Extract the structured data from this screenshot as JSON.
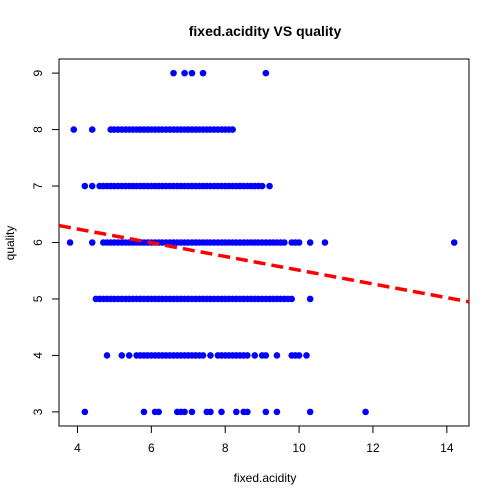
{
  "chart_data": {
    "type": "scatter",
    "title": "fixed.acidity VS quality",
    "xlabel": "fixed.acidity",
    "ylabel": "quality",
    "xlim": [
      3.5,
      14.6
    ],
    "ylim": [
      2.75,
      9.25
    ],
    "x_ticks": [
      4,
      6,
      8,
      10,
      12,
      14
    ],
    "y_ticks": [
      3,
      4,
      5,
      6,
      7,
      8,
      9
    ],
    "grid": false,
    "legend": "none",
    "point_color": "#0000ff",
    "line_color": "#ff0000",
    "regression_line": {
      "x": [
        3.5,
        14.6
      ],
      "y": [
        6.3,
        4.95
      ],
      "style": "dashed"
    },
    "points_by_quality": [
      {
        "quality": 9,
        "x": [
          6.6,
          6.9,
          7.1,
          7.4,
          9.1
        ]
      },
      {
        "quality": 8,
        "x": [
          3.9,
          4.4,
          4.9,
          5.0,
          5.1,
          5.2,
          5.3,
          5.4,
          5.5,
          5.6,
          5.7,
          5.8,
          5.9,
          6.0,
          6.1,
          6.2,
          6.3,
          6.4,
          6.5,
          6.6,
          6.7,
          6.8,
          6.9,
          7.0,
          7.1,
          7.2,
          7.3,
          7.4,
          7.5,
          7.6,
          7.7,
          7.8,
          7.9,
          8.0,
          8.1,
          8.2
        ]
      },
      {
        "quality": 7,
        "x": [
          4.2,
          4.4,
          4.6,
          4.7,
          4.8,
          4.9,
          5.0,
          5.1,
          5.2,
          5.3,
          5.4,
          5.5,
          5.6,
          5.7,
          5.8,
          5.9,
          6.0,
          6.1,
          6.2,
          6.3,
          6.4,
          6.5,
          6.6,
          6.7,
          6.8,
          6.9,
          7.0,
          7.1,
          7.2,
          7.3,
          7.4,
          7.5,
          7.6,
          7.7,
          7.8,
          7.9,
          8.0,
          8.1,
          8.2,
          8.3,
          8.4,
          8.5,
          8.6,
          8.7,
          8.8,
          8.9,
          9.0,
          9.2
        ]
      },
      {
        "quality": 6,
        "x": [
          3.8,
          4.4,
          4.7,
          4.8,
          4.9,
          5.0,
          5.1,
          5.2,
          5.3,
          5.4,
          5.5,
          5.6,
          5.7,
          5.8,
          5.9,
          6.0,
          6.1,
          6.2,
          6.3,
          6.4,
          6.5,
          6.6,
          6.7,
          6.8,
          6.9,
          7.0,
          7.1,
          7.2,
          7.3,
          7.4,
          7.5,
          7.6,
          7.7,
          7.8,
          7.9,
          8.0,
          8.1,
          8.2,
          8.3,
          8.4,
          8.5,
          8.6,
          8.7,
          8.8,
          8.9,
          9.0,
          9.1,
          9.2,
          9.3,
          9.4,
          9.5,
          9.6,
          9.8,
          9.9,
          10.0,
          10.3,
          10.7,
          14.2
        ]
      },
      {
        "quality": 5,
        "x": [
          4.5,
          4.6,
          4.7,
          4.8,
          4.9,
          5.0,
          5.1,
          5.2,
          5.3,
          5.4,
          5.5,
          5.6,
          5.7,
          5.8,
          5.9,
          6.0,
          6.1,
          6.2,
          6.3,
          6.4,
          6.5,
          6.6,
          6.7,
          6.8,
          6.9,
          7.0,
          7.1,
          7.2,
          7.3,
          7.4,
          7.5,
          7.6,
          7.7,
          7.8,
          7.9,
          8.0,
          8.1,
          8.2,
          8.3,
          8.4,
          8.5,
          8.6,
          8.7,
          8.8,
          8.9,
          9.0,
          9.1,
          9.2,
          9.3,
          9.4,
          9.5,
          9.6,
          9.7,
          9.8,
          10.3
        ]
      },
      {
        "quality": 4,
        "x": [
          4.8,
          5.2,
          5.4,
          5.6,
          5.7,
          5.8,
          5.9,
          6.0,
          6.1,
          6.2,
          6.3,
          6.4,
          6.5,
          6.6,
          6.7,
          6.8,
          6.9,
          7.0,
          7.1,
          7.2,
          7.3,
          7.4,
          7.6,
          7.8,
          7.9,
          8.0,
          8.1,
          8.2,
          8.3,
          8.4,
          8.5,
          8.6,
          8.8,
          9.0,
          9.1,
          9.4,
          9.8,
          9.9,
          10.0,
          10.2
        ]
      },
      {
        "quality": 3,
        "x": [
          4.2,
          5.8,
          6.1,
          6.2,
          6.7,
          6.8,
          6.9,
          7.1,
          7.5,
          7.6,
          7.9,
          8.3,
          8.5,
          8.6,
          9.1,
          9.4,
          10.3,
          11.8
        ]
      }
    ]
  }
}
